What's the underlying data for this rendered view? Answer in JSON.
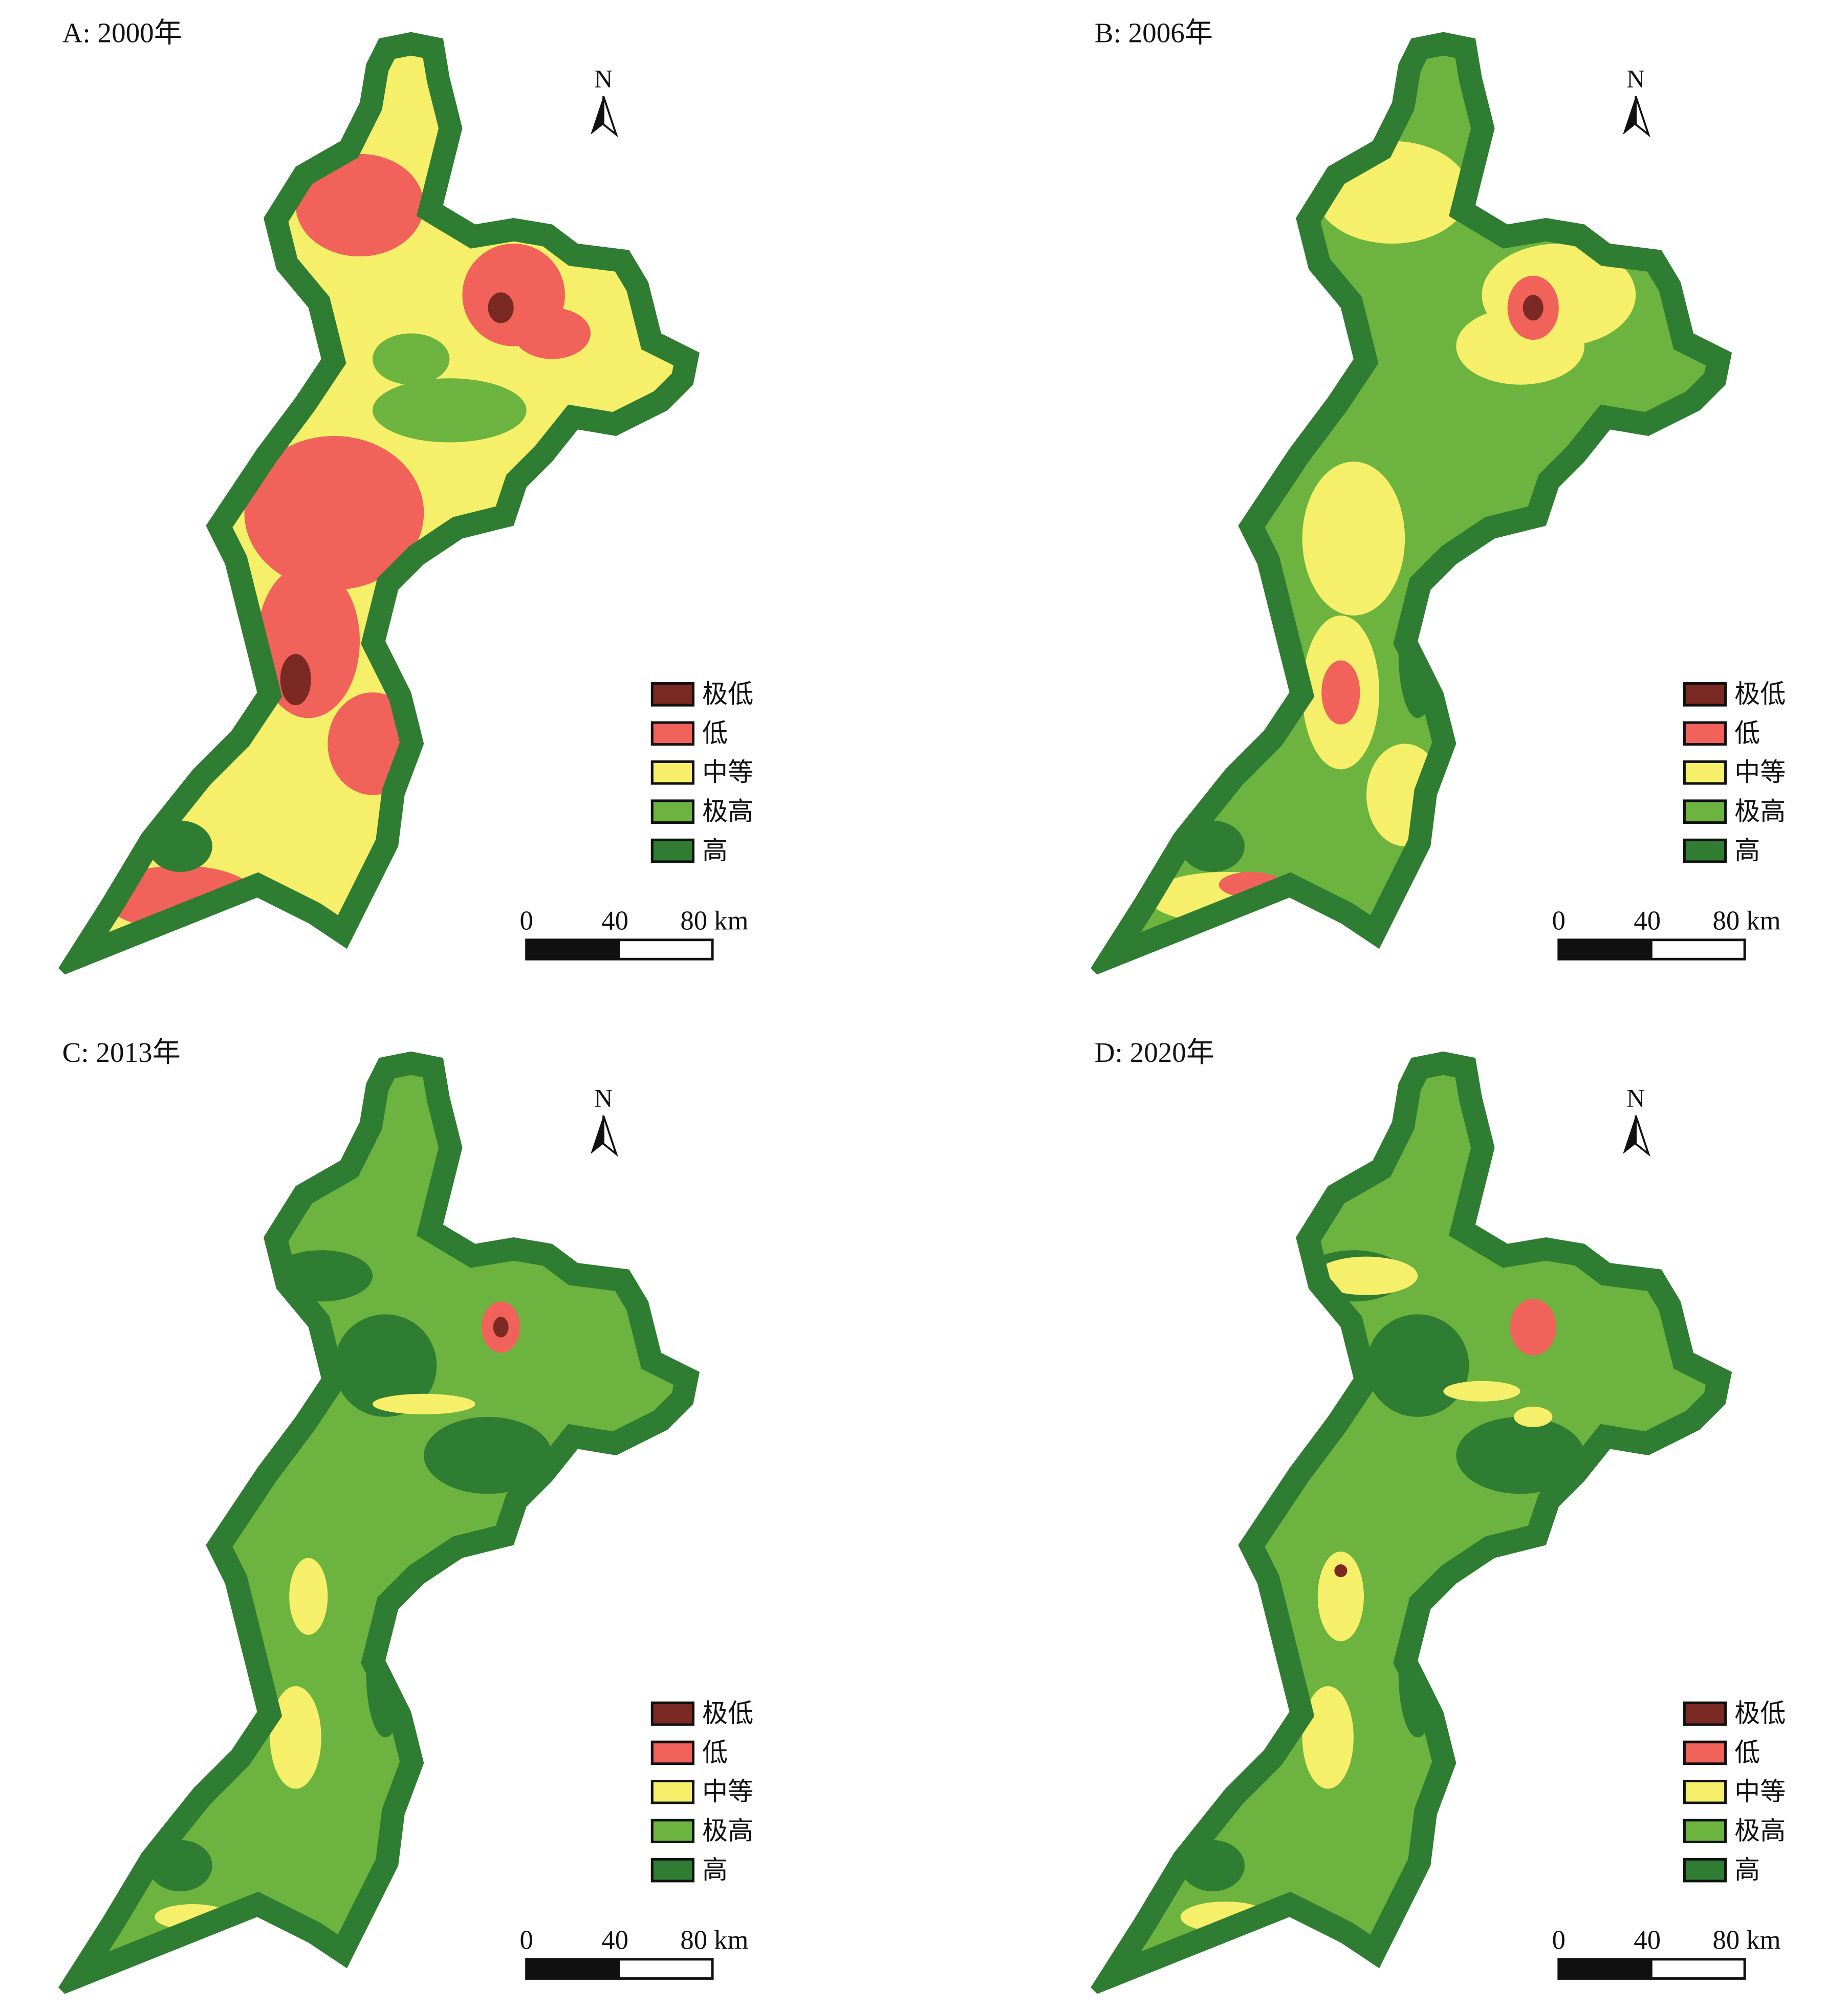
{
  "panels": [
    {
      "title": "A: 2000年"
    },
    {
      "title": "B: 2006年"
    },
    {
      "title": "C: 2013年"
    },
    {
      "title": "D: 2020年"
    }
  ],
  "north": "N",
  "legend": [
    {
      "label": "极低",
      "color": "#7a2a22"
    },
    {
      "label": "低",
      "color": "#f0625a"
    },
    {
      "label": "中等",
      "color": "#f5ef6a"
    },
    {
      "label": "极高",
      "color": "#6db33f"
    },
    {
      "label": "高",
      "color": "#2e7d32"
    }
  ],
  "scale_labels": [
    "0",
    "40",
    "80 km"
  ]
}
